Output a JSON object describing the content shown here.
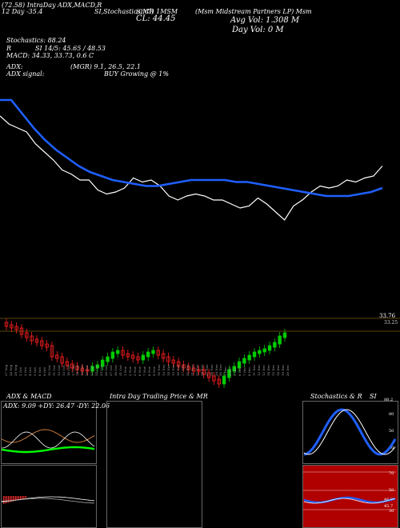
{
  "header": {
    "top_left": "(72.58) IntraDay ADX,MACD,R",
    "top_left_sub": "12  Day   -35.4",
    "top_mid": "SI,Stochastics,MR",
    "top_center": "(0.Cl) 1MSM",
    "close_label": "CL: 44.45",
    "title": "(Msm Midstream Partners LP) Msm",
    "avg_vol": "Avg Vol: 1.308  M",
    "day_vol": "Day Vol: 0  M"
  },
  "indicators": {
    "stochastics": "Stochastics: 88.24",
    "rsi_label": "R",
    "rsi": "SI 14/5: 45.65 / 48.53",
    "macd": "MACD: 34.33, 33.73, 0.6  C",
    "adx": "ADX:",
    "mgr": "(MGR) 9.1, 26.5, 22.1",
    "adx_signal": "ADX  signal:",
    "signal_text": "BUY Growing @ 1%"
  },
  "candle_panel": {
    "price_label": "33.76",
    "price_label2": "33.25",
    "dates": [
      "27 Sep",
      "28 Sep",
      "29 Sep",
      "2 Oct",
      "3 Oct",
      "4 Oct",
      "5 Oct",
      "6 Oct",
      "9 Oct",
      "10 Oct",
      "11 Oct",
      "12 Oct",
      "13 Oct",
      "16 Oct",
      "17 Oct",
      "18 Oct",
      "19 Oct",
      "20 Oct",
      "23 Oct",
      "24 Oct",
      "25 Oct",
      "26 Oct",
      "27 Oct",
      "30 Oct",
      "31 Oct",
      "1 Nov",
      "2 Nov",
      "3 Nov",
      "6 Nov",
      "7 Nov",
      "8 Nov",
      "9 Nov",
      "10 Nov",
      "13 Nov",
      "14 Nov",
      "15 Nov",
      "16 Nov",
      "17 Nov",
      "20 Nov",
      "21 Nov",
      "22 Nov",
      "24 Nov",
      "27 Nov",
      "28 Nov",
      "29 Nov",
      "30 Nov",
      "1 Dec",
      "4 Dec",
      "5 Dec",
      "6 Dec",
      "7 Dec",
      "8 Dec",
      "11 Dec",
      "12 Dec",
      "13 Dec",
      "14 Dec",
      "15 Dec",
      "18 Dec",
      "19 Dec",
      "20 Dec"
    ]
  },
  "bottom_panels": {
    "adx_title": "ADX  & MACD",
    "adx_values": "ADX: 9.09  +DY: 26.47  -DY: 22.06",
    "intra_title": "Intra  Day Trading Price  & MR",
    "stoch_title": "Stochastics & R",
    "stoch_title2": "SI",
    "stoch_val": "88.2",
    "stoch_ticks": [
      "80",
      "50",
      "20"
    ],
    "rsi_ticks": [
      "70",
      "50",
      "30"
    ],
    "rsi_val": "46.7",
    "rsi_end": "45.7"
  },
  "colors": {
    "ma_line": "#1f5fff",
    "price_line": "#ffffff",
    "up_candle": "#00cc00",
    "down_candle": "#ff2020",
    "grid": "#b8860b"
  },
  "chart_data": {
    "type": "line",
    "series": [
      {
        "values": [
          62,
          58,
          56,
          54,
          48,
          44,
          40,
          35,
          33,
          30,
          30,
          25,
          23,
          24,
          26,
          31,
          29,
          30,
          27,
          22,
          20,
          22,
          23,
          22,
          20,
          20,
          18,
          16,
          17,
          21,
          18,
          14,
          10,
          17,
          20,
          24,
          27,
          26,
          27,
          30,
          29,
          31,
          32,
          37
        ]
      },
      {
        "values": [
          70,
          70,
          63,
          56,
          50,
          45,
          41,
          37,
          34,
          32,
          30,
          29,
          28,
          27,
          27,
          28,
          29,
          30,
          30,
          30,
          30,
          29,
          29,
          28,
          27,
          26,
          25,
          24,
          23,
          22,
          22,
          22,
          23,
          24,
          26
        ]
      }
    ]
  }
}
